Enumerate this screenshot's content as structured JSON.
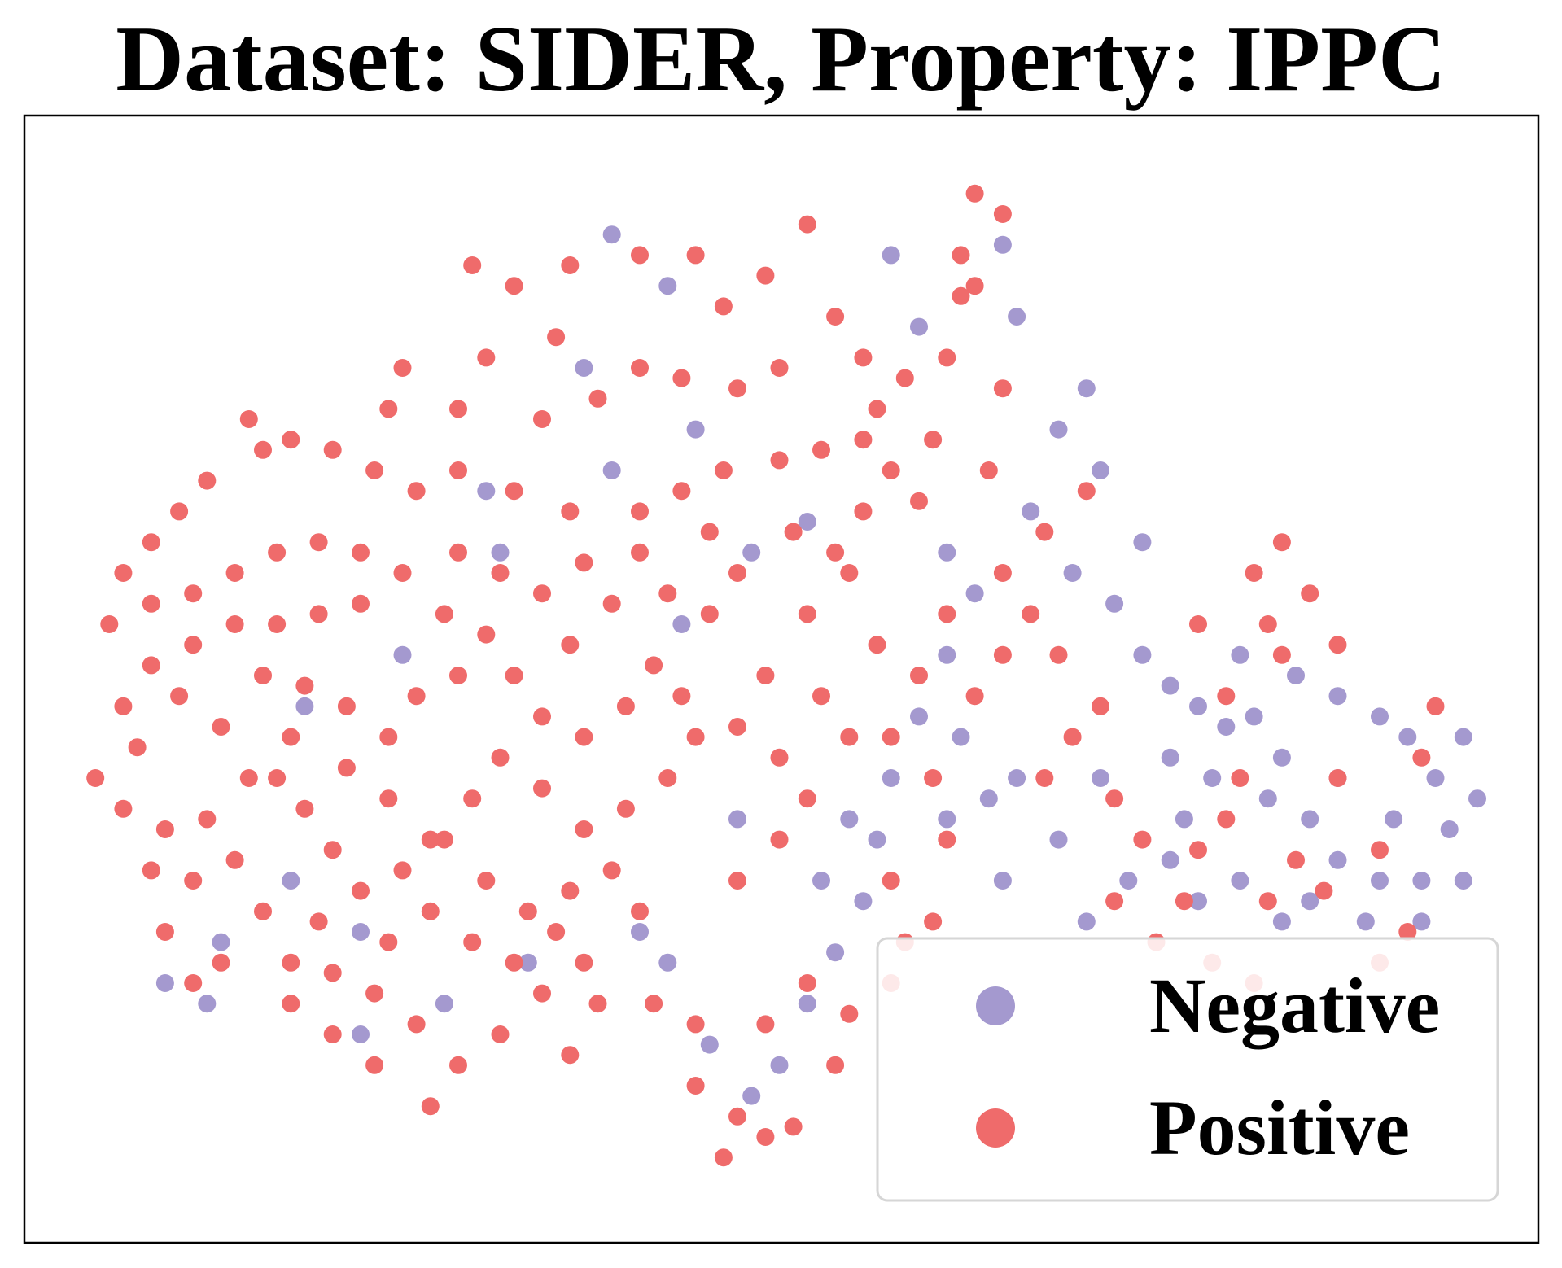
{
  "chart_data": {
    "type": "scatter",
    "title": "Dataset: SIDER, Property: IPPC",
    "xlabel": "",
    "ylabel": "",
    "grid": false,
    "axes_ticks": false,
    "legend": {
      "placement": "bottom-right",
      "entries": [
        {
          "name": "Negative",
          "color": "#a499cf"
        },
        {
          "name": "Positive",
          "color": "#ef6b6b"
        }
      ]
    },
    "series": [
      {
        "name": "Negative",
        "color": "#a499cf",
        "points": [
          [
            0.38,
            0.93
          ],
          [
            0.42,
            0.88
          ],
          [
            0.36,
            0.8
          ],
          [
            0.44,
            0.74
          ],
          [
            0.38,
            0.7
          ],
          [
            0.3,
            0.62
          ],
          [
            0.29,
            0.68
          ],
          [
            0.23,
            0.52
          ],
          [
            0.16,
            0.47
          ],
          [
            0.15,
            0.3
          ],
          [
            0.2,
            0.25
          ],
          [
            0.32,
            0.22
          ],
          [
            0.4,
            0.25
          ],
          [
            0.47,
            0.36
          ],
          [
            0.43,
            0.55
          ],
          [
            0.48,
            0.62
          ],
          [
            0.52,
            0.65
          ],
          [
            0.58,
            0.91
          ],
          [
            0.6,
            0.84
          ],
          [
            0.66,
            0.92
          ],
          [
            0.67,
            0.85
          ],
          [
            0.72,
            0.78
          ],
          [
            0.7,
            0.74
          ],
          [
            0.73,
            0.7
          ],
          [
            0.76,
            0.63
          ],
          [
            0.74,
            0.57
          ],
          [
            0.76,
            0.52
          ],
          [
            0.78,
            0.49
          ],
          [
            0.8,
            0.47
          ],
          [
            0.82,
            0.45
          ],
          [
            0.78,
            0.42
          ],
          [
            0.81,
            0.4
          ],
          [
            0.85,
            0.38
          ],
          [
            0.86,
            0.42
          ],
          [
            0.84,
            0.46
          ],
          [
            0.83,
            0.52
          ],
          [
            0.87,
            0.5
          ],
          [
            0.9,
            0.48
          ],
          [
            0.93,
            0.46
          ],
          [
            0.95,
            0.44
          ],
          [
            0.9,
            0.4
          ],
          [
            0.88,
            0.36
          ],
          [
            0.94,
            0.36
          ],
          [
            0.97,
            0.4
          ],
          [
            0.99,
            0.44
          ],
          [
            0.98,
            0.35
          ],
          [
            0.96,
            0.3
          ],
          [
            0.93,
            0.3
          ],
          [
            0.9,
            0.32
          ],
          [
            0.88,
            0.28
          ],
          [
            0.92,
            0.26
          ],
          [
            0.96,
            0.26
          ],
          [
            0.99,
            0.3
          ],
          [
            1.0,
            0.38
          ],
          [
            0.75,
            0.3
          ],
          [
            0.72,
            0.26
          ],
          [
            0.7,
            0.34
          ],
          [
            0.67,
            0.4
          ],
          [
            0.65,
            0.38
          ],
          [
            0.63,
            0.44
          ],
          [
            0.6,
            0.46
          ],
          [
            0.58,
            0.4
          ],
          [
            0.55,
            0.36
          ],
          [
            0.53,
            0.3
          ],
          [
            0.56,
            0.28
          ],
          [
            0.57,
            0.34
          ],
          [
            0.62,
            0.36
          ],
          [
            0.66,
            0.3
          ],
          [
            0.54,
            0.23
          ],
          [
            0.52,
            0.18
          ],
          [
            0.5,
            0.12
          ],
          [
            0.48,
            0.09
          ],
          [
            0.45,
            0.14
          ],
          [
            0.42,
            0.22
          ],
          [
            0.26,
            0.18
          ],
          [
            0.2,
            0.15
          ],
          [
            0.1,
            0.24
          ],
          [
            0.09,
            0.18
          ],
          [
            0.06,
            0.2
          ],
          [
            0.62,
            0.62
          ],
          [
            0.64,
            0.58
          ],
          [
            0.62,
            0.52
          ],
          [
            0.68,
            0.66
          ],
          [
            0.71,
            0.6
          ],
          [
            0.73,
            0.4
          ],
          [
            0.79,
            0.36
          ],
          [
            0.83,
            0.3
          ],
          [
            0.86,
            0.26
          ],
          [
            0.8,
            0.28
          ],
          [
            0.78,
            0.32
          ]
        ]
      },
      {
        "name": "Positive",
        "color": "#ef6b6b",
        "points": [
          [
            0.64,
            0.97
          ],
          [
            0.52,
            0.94
          ],
          [
            0.49,
            0.89
          ],
          [
            0.28,
            0.9
          ],
          [
            0.31,
            0.88
          ],
          [
            0.35,
            0.9
          ],
          [
            0.4,
            0.91
          ],
          [
            0.44,
            0.91
          ],
          [
            0.46,
            0.86
          ],
          [
            0.34,
            0.83
          ],
          [
            0.29,
            0.81
          ],
          [
            0.23,
            0.8
          ],
          [
            0.22,
            0.76
          ],
          [
            0.27,
            0.76
          ],
          [
            0.33,
            0.75
          ],
          [
            0.37,
            0.77
          ],
          [
            0.4,
            0.8
          ],
          [
            0.43,
            0.79
          ],
          [
            0.47,
            0.78
          ],
          [
            0.5,
            0.8
          ],
          [
            0.54,
            0.85
          ],
          [
            0.56,
            0.81
          ],
          [
            0.59,
            0.79
          ],
          [
            0.62,
            0.81
          ],
          [
            0.63,
            0.87
          ],
          [
            0.61,
            0.73
          ],
          [
            0.56,
            0.73
          ],
          [
            0.53,
            0.72
          ],
          [
            0.5,
            0.71
          ],
          [
            0.46,
            0.7
          ],
          [
            0.43,
            0.68
          ],
          [
            0.4,
            0.66
          ],
          [
            0.35,
            0.66
          ],
          [
            0.31,
            0.68
          ],
          [
            0.27,
            0.7
          ],
          [
            0.24,
            0.68
          ],
          [
            0.21,
            0.7
          ],
          [
            0.18,
            0.72
          ],
          [
            0.15,
            0.73
          ],
          [
            0.12,
            0.75
          ],
          [
            0.13,
            0.72
          ],
          [
            0.09,
            0.69
          ],
          [
            0.07,
            0.66
          ],
          [
            0.05,
            0.63
          ],
          [
            0.03,
            0.6
          ],
          [
            0.02,
            0.55
          ],
          [
            0.05,
            0.57
          ],
          [
            0.08,
            0.58
          ],
          [
            0.11,
            0.6
          ],
          [
            0.14,
            0.62
          ],
          [
            0.17,
            0.63
          ],
          [
            0.2,
            0.62
          ],
          [
            0.2,
            0.57
          ],
          [
            0.17,
            0.56
          ],
          [
            0.14,
            0.55
          ],
          [
            0.11,
            0.55
          ],
          [
            0.08,
            0.53
          ],
          [
            0.05,
            0.51
          ],
          [
            0.03,
            0.47
          ],
          [
            0.04,
            0.43
          ],
          [
            0.01,
            0.4
          ],
          [
            0.03,
            0.37
          ],
          [
            0.06,
            0.35
          ],
          [
            0.05,
            0.31
          ],
          [
            0.08,
            0.3
          ],
          [
            0.11,
            0.32
          ],
          [
            0.09,
            0.36
          ],
          [
            0.12,
            0.4
          ],
          [
            0.1,
            0.45
          ],
          [
            0.07,
            0.48
          ],
          [
            0.13,
            0.5
          ],
          [
            0.16,
            0.49
          ],
          [
            0.19,
            0.47
          ],
          [
            0.15,
            0.44
          ],
          [
            0.14,
            0.4
          ],
          [
            0.16,
            0.37
          ],
          [
            0.18,
            0.33
          ],
          [
            0.13,
            0.27
          ],
          [
            0.1,
            0.22
          ],
          [
            0.08,
            0.2
          ],
          [
            0.06,
            0.25
          ],
          [
            0.15,
            0.22
          ],
          [
            0.17,
            0.26
          ],
          [
            0.2,
            0.29
          ],
          [
            0.23,
            0.31
          ],
          [
            0.25,
            0.34
          ],
          [
            0.22,
            0.38
          ],
          [
            0.19,
            0.41
          ],
          [
            0.22,
            0.44
          ],
          [
            0.24,
            0.48
          ],
          [
            0.27,
            0.5
          ],
          [
            0.29,
            0.54
          ],
          [
            0.26,
            0.56
          ],
          [
            0.23,
            0.6
          ],
          [
            0.27,
            0.62
          ],
          [
            0.3,
            0.6
          ],
          [
            0.33,
            0.58
          ],
          [
            0.36,
            0.61
          ],
          [
            0.38,
            0.57
          ],
          [
            0.35,
            0.53
          ],
          [
            0.31,
            0.5
          ],
          [
            0.33,
            0.46
          ],
          [
            0.36,
            0.44
          ],
          [
            0.39,
            0.47
          ],
          [
            0.41,
            0.51
          ],
          [
            0.43,
            0.48
          ],
          [
            0.44,
            0.44
          ],
          [
            0.42,
            0.4
          ],
          [
            0.39,
            0.37
          ],
          [
            0.36,
            0.35
          ],
          [
            0.33,
            0.39
          ],
          [
            0.3,
            0.42
          ],
          [
            0.28,
            0.38
          ],
          [
            0.26,
            0.34
          ],
          [
            0.29,
            0.3
          ],
          [
            0.32,
            0.27
          ],
          [
            0.35,
            0.29
          ],
          [
            0.38,
            0.31
          ],
          [
            0.4,
            0.27
          ],
          [
            0.36,
            0.22
          ],
          [
            0.33,
            0.19
          ],
          [
            0.3,
            0.15
          ],
          [
            0.27,
            0.12
          ],
          [
            0.24,
            0.16
          ],
          [
            0.21,
            0.19
          ],
          [
            0.18,
            0.21
          ],
          [
            0.22,
            0.24
          ],
          [
            0.25,
            0.27
          ],
          [
            0.28,
            0.24
          ],
          [
            0.31,
            0.22
          ],
          [
            0.34,
            0.25
          ],
          [
            0.37,
            0.18
          ],
          [
            0.35,
            0.13
          ],
          [
            0.25,
            0.08
          ],
          [
            0.21,
            0.12
          ],
          [
            0.18,
            0.15
          ],
          [
            0.15,
            0.18
          ],
          [
            0.41,
            0.18
          ],
          [
            0.44,
            0.16
          ],
          [
            0.44,
            0.1
          ],
          [
            0.47,
            0.07
          ],
          [
            0.46,
            0.03
          ],
          [
            0.49,
            0.05
          ],
          [
            0.51,
            0.06
          ],
          [
            0.49,
            0.16
          ],
          [
            0.52,
            0.2
          ],
          [
            0.55,
            0.17
          ],
          [
            0.54,
            0.12
          ],
          [
            0.47,
            0.3
          ],
          [
            0.5,
            0.34
          ],
          [
            0.52,
            0.38
          ],
          [
            0.5,
            0.42
          ],
          [
            0.47,
            0.45
          ],
          [
            0.49,
            0.5
          ],
          [
            0.53,
            0.48
          ],
          [
            0.55,
            0.44
          ],
          [
            0.52,
            0.56
          ],
          [
            0.55,
            0.6
          ],
          [
            0.56,
            0.66
          ],
          [
            0.58,
            0.7
          ],
          [
            0.57,
            0.76
          ],
          [
            0.6,
            0.67
          ],
          [
            0.62,
            0.56
          ],
          [
            0.6,
            0.5
          ],
          [
            0.57,
            0.53
          ],
          [
            0.58,
            0.3
          ],
          [
            0.59,
            0.24
          ],
          [
            0.58,
            0.2
          ],
          [
            0.61,
            0.26
          ],
          [
            0.62,
            0.34
          ],
          [
            0.61,
            0.4
          ],
          [
            0.58,
            0.44
          ],
          [
            0.64,
            0.48
          ],
          [
            0.66,
            0.52
          ],
          [
            0.68,
            0.56
          ],
          [
            0.66,
            0.6
          ],
          [
            0.69,
            0.64
          ],
          [
            0.72,
            0.68
          ],
          [
            0.7,
            0.52
          ],
          [
            0.73,
            0.47
          ],
          [
            0.71,
            0.44
          ],
          [
            0.69,
            0.4
          ],
          [
            0.74,
            0.38
          ],
          [
            0.76,
            0.34
          ],
          [
            0.74,
            0.28
          ],
          [
            0.77,
            0.24
          ],
          [
            0.79,
            0.28
          ],
          [
            0.8,
            0.33
          ],
          [
            0.82,
            0.36
          ],
          [
            0.83,
            0.4
          ],
          [
            0.82,
            0.48
          ],
          [
            0.8,
            0.55
          ],
          [
            0.85,
            0.55
          ],
          [
            0.84,
            0.6
          ],
          [
            0.86,
            0.63
          ],
          [
            0.88,
            0.58
          ],
          [
            0.86,
            0.52
          ],
          [
            0.9,
            0.53
          ],
          [
            0.89,
            0.29
          ],
          [
            0.93,
            0.33
          ],
          [
            0.95,
            0.25
          ],
          [
            0.93,
            0.22
          ],
          [
            0.96,
            0.42
          ],
          [
            0.97,
            0.47
          ],
          [
            0.9,
            0.4
          ],
          [
            0.87,
            0.32
          ],
          [
            0.85,
            0.28
          ],
          [
            0.81,
            0.22
          ],
          [
            0.84,
            0.2
          ],
          [
            0.65,
            0.7
          ],
          [
            0.66,
            0.78
          ],
          [
            0.64,
            0.88
          ],
          [
            0.63,
            0.91
          ],
          [
            0.66,
            0.95
          ],
          [
            0.54,
            0.62
          ],
          [
            0.51,
            0.64
          ],
          [
            0.47,
            0.6
          ],
          [
            0.45,
            0.56
          ],
          [
            0.42,
            0.58
          ],
          [
            0.4,
            0.62
          ],
          [
            0.45,
            0.64
          ]
        ]
      }
    ]
  }
}
